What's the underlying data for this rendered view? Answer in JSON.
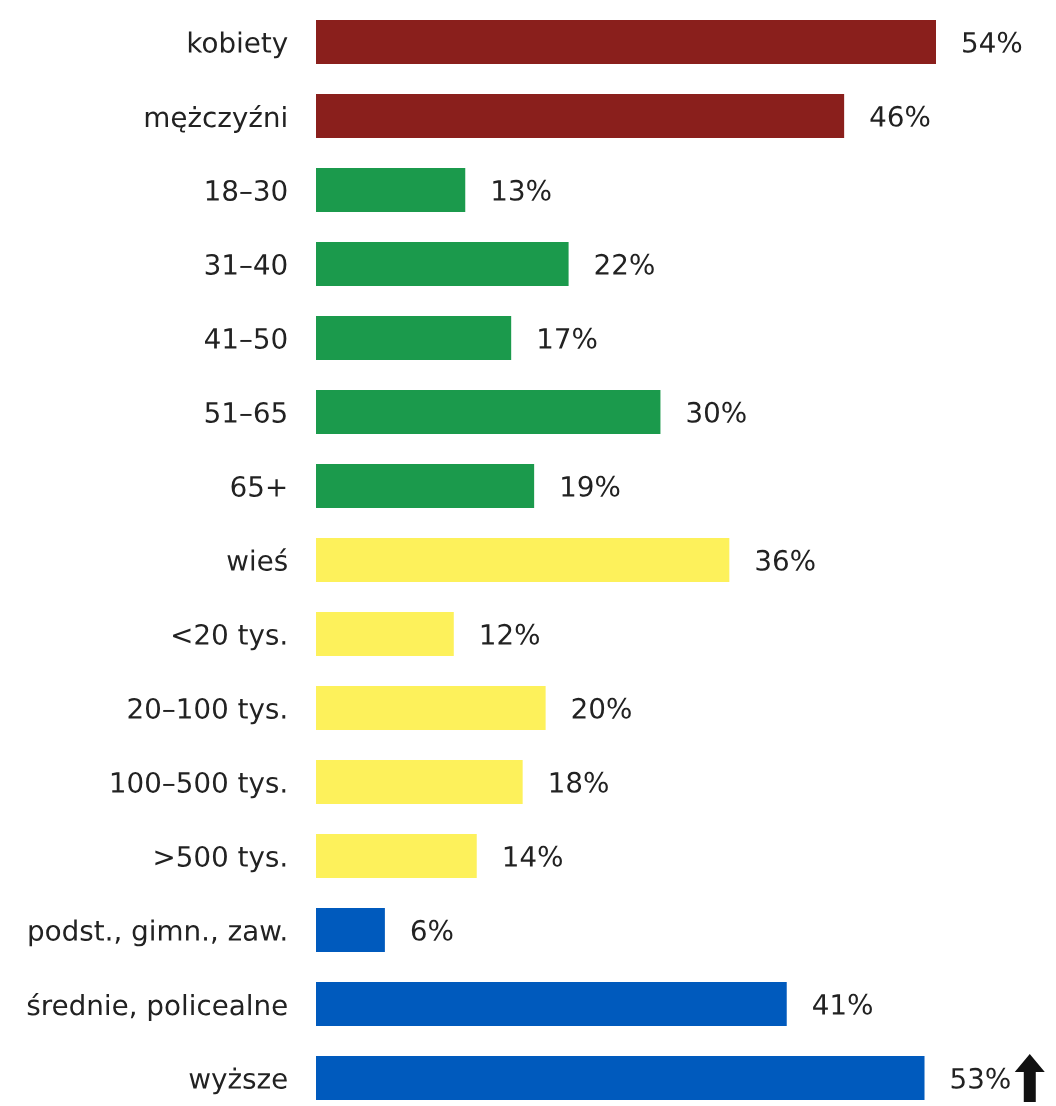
{
  "chart_data": {
    "type": "bar",
    "orientation": "horizontal",
    "categories": [
      "kobiety",
      "mężczyźni",
      "18–30",
      "31–40",
      "41–50",
      "51–65",
      "65+",
      "wieś",
      "<20 tys.",
      "20–100 tys.",
      "100–500 tys.",
      ">500 tys.",
      "podst., gimn., zaw.",
      "średnie, policealne",
      "wyższe"
    ],
    "values": [
      54,
      46,
      13,
      22,
      17,
      30,
      19,
      36,
      12,
      20,
      18,
      14,
      6,
      41,
      53
    ],
    "colors": [
      "#8a1f1c",
      "#8a1f1c",
      "#1b9a4c",
      "#1b9a4c",
      "#1b9a4c",
      "#1b9a4c",
      "#1b9a4c",
      "#fdf15b",
      "#fdf15b",
      "#fdf15b",
      "#fdf15b",
      "#fdf15b",
      "#005abd",
      "#005abd",
      "#005abd"
    ],
    "value_labels": [
      "54%",
      "46%",
      "13%",
      "22%",
      "17%",
      "30%",
      "19%",
      "36%",
      "12%",
      "20%",
      "18%",
      "14%",
      "6%",
      "41%",
      "53%"
    ]
  }
}
